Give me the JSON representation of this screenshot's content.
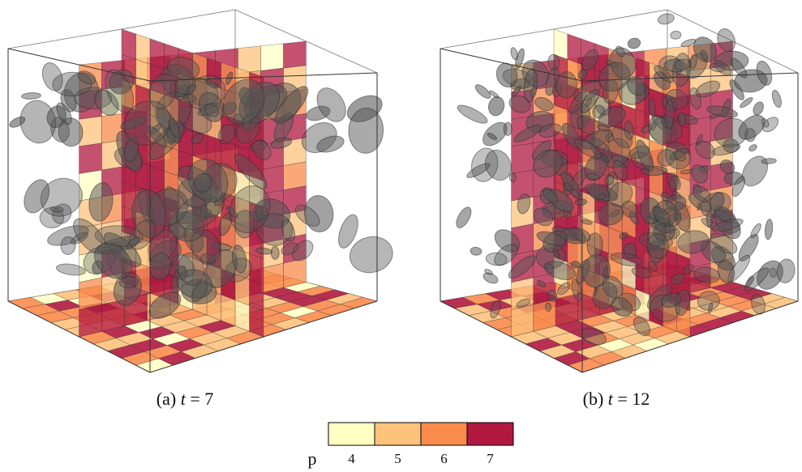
{
  "panels": [
    {
      "label": "(a)",
      "variable": "t",
      "equals": "=",
      "value": 7
    },
    {
      "label": "(b)",
      "variable": "t",
      "equals": "=",
      "value": 12
    }
  ],
  "colorbar": {
    "label": "p",
    "ticks": [
      4,
      5,
      6,
      7
    ],
    "colors": [
      "#ffffc4",
      "#fdc27c",
      "#f98b4c",
      "#b0183f"
    ]
  }
}
